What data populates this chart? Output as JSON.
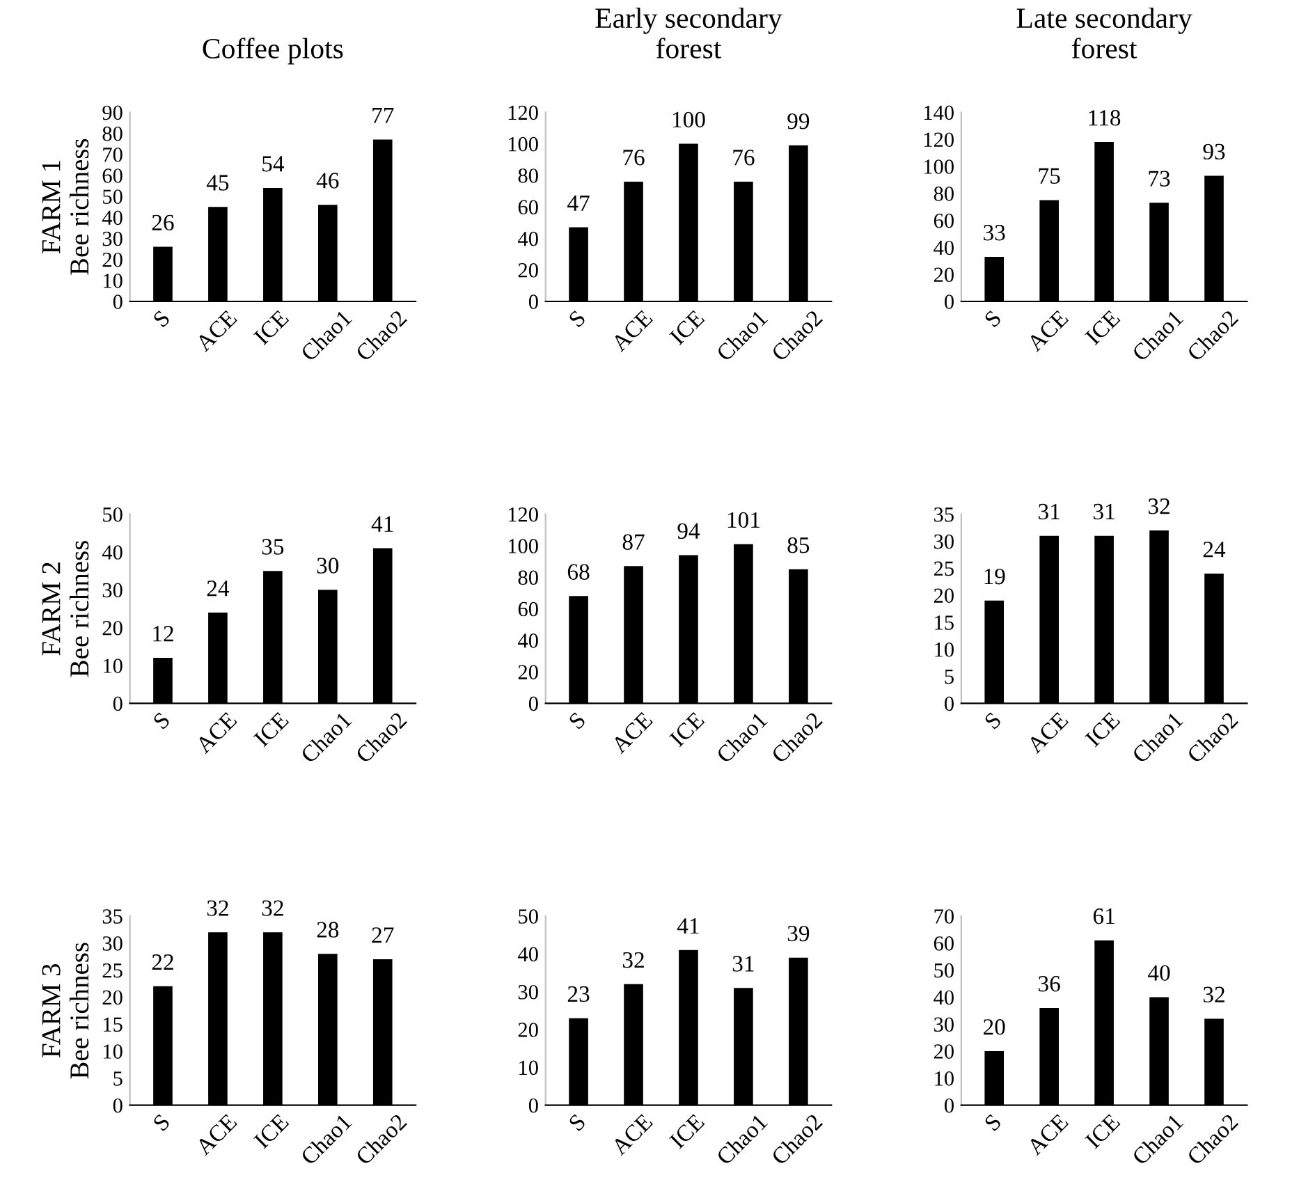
{
  "chart_data": [
    {
      "type": "bar",
      "title": "Coffee plots",
      "ylabel": "FARM 1\nBee richness",
      "categories": [
        "S",
        "ACE",
        "ICE",
        "Chao1",
        "Chao2"
      ],
      "values": [
        26,
        45,
        54,
        46,
        77
      ],
      "color": "#000000",
      "ylim": [
        0,
        90
      ],
      "yticks": [
        0,
        10,
        20,
        30,
        40,
        50,
        60,
        70,
        80,
        90
      ],
      "data_labels": true
    },
    {
      "type": "bar",
      "title": "Early secondary\nforest",
      "categories": [
        "S",
        "ACE",
        "ICE",
        "Chao1",
        "Chao2"
      ],
      "values": [
        47,
        76,
        100,
        76,
        99
      ],
      "color": "#000000",
      "ylim": [
        0,
        120
      ],
      "yticks": [
        0,
        20,
        40,
        60,
        80,
        100,
        120
      ],
      "data_labels": true
    },
    {
      "type": "bar",
      "title": "Late secondary\nforest",
      "categories": [
        "S",
        "ACE",
        "ICE",
        "Chao1",
        "Chao2"
      ],
      "values": [
        33,
        75,
        118,
        73,
        93
      ],
      "color": "#000000",
      "ylim": [
        0,
        140
      ],
      "yticks": [
        0,
        20,
        40,
        60,
        80,
        100,
        120,
        140
      ],
      "data_labels": true
    },
    {
      "type": "bar",
      "ylabel": "FARM 2\nBee richness",
      "categories": [
        "S",
        "ACE",
        "ICE",
        "Chao1",
        "Chao2"
      ],
      "values": [
        12,
        24,
        35,
        30,
        41
      ],
      "color": "#000000",
      "ylim": [
        0,
        50
      ],
      "yticks": [
        0,
        10,
        20,
        30,
        40,
        50
      ],
      "data_labels": true
    },
    {
      "type": "bar",
      "categories": [
        "S",
        "ACE",
        "ICE",
        "Chao1",
        "Chao2"
      ],
      "values": [
        68,
        87,
        94,
        101,
        85
      ],
      "color": "#000000",
      "ylim": [
        0,
        120
      ],
      "yticks": [
        0,
        20,
        40,
        60,
        80,
        100,
        120
      ],
      "data_labels": true
    },
    {
      "type": "bar",
      "categories": [
        "S",
        "ACE",
        "ICE",
        "Chao1",
        "Chao2"
      ],
      "values": [
        19,
        31,
        31,
        32,
        24
      ],
      "color": "#000000",
      "ylim": [
        0,
        35
      ],
      "yticks": [
        0,
        5,
        10,
        15,
        20,
        25,
        30,
        35
      ],
      "data_labels": true
    },
    {
      "type": "bar",
      "ylabel": "FARM 3\nBee richness",
      "categories": [
        "S",
        "ACE",
        "ICE",
        "Chao1",
        "Chao2"
      ],
      "values": [
        22,
        32,
        32,
        28,
        27
      ],
      "color": "#000000",
      "ylim": [
        0,
        35
      ],
      "yticks": [
        0,
        5,
        10,
        15,
        20,
        25,
        30,
        35
      ],
      "data_labels": true
    },
    {
      "type": "bar",
      "categories": [
        "S",
        "ACE",
        "ICE",
        "Chao1",
        "Chao2"
      ],
      "values": [
        23,
        32,
        41,
        31,
        39
      ],
      "color": "#000000",
      "ylim": [
        0,
        50
      ],
      "yticks": [
        0,
        10,
        20,
        30,
        40,
        50
      ],
      "data_labels": true
    },
    {
      "type": "bar",
      "categories": [
        "S",
        "ACE",
        "ICE",
        "Chao1",
        "Chao2"
      ],
      "values": [
        20,
        36,
        61,
        40,
        32
      ],
      "color": "#000000",
      "ylim": [
        0,
        70
      ],
      "yticks": [
        0,
        10,
        20,
        30,
        40,
        50,
        60,
        70
      ],
      "data_labels": true
    }
  ]
}
